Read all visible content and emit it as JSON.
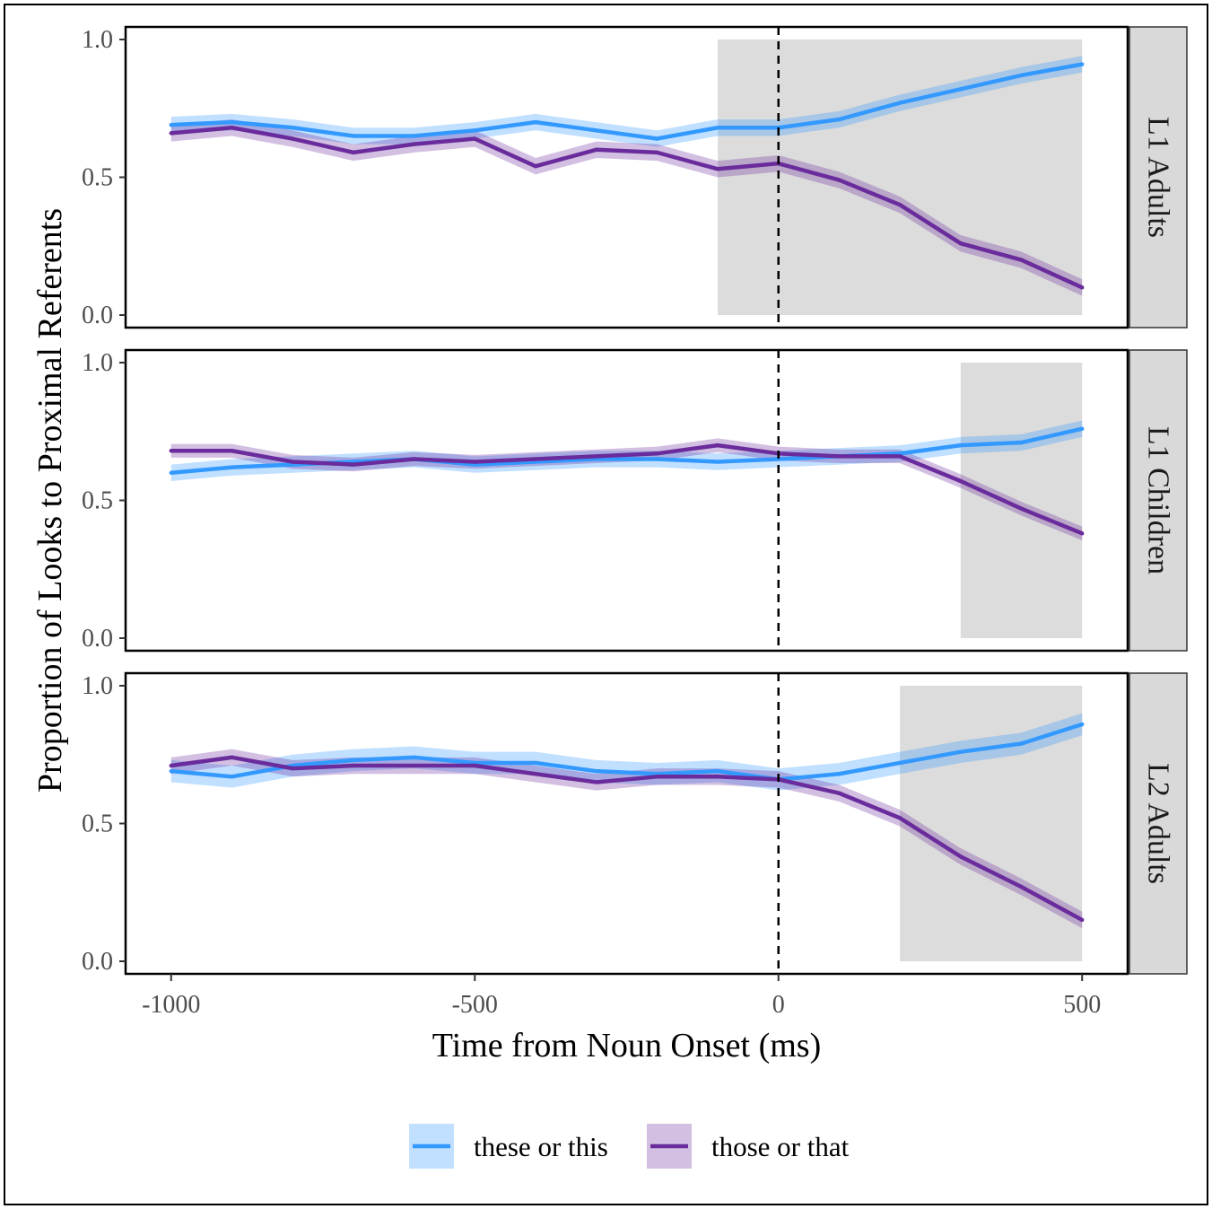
{
  "chart_data": {
    "type": "line",
    "ylabel": "Proportion of Looks to Proximal Referents",
    "xlabel": "Time from Noun Onset (ms)",
    "xlim": [
      -1075,
      575
    ],
    "ylim": [
      0,
      1
    ],
    "x_ticks": [
      -1000,
      -500,
      0,
      500
    ],
    "x_tick_labels": [
      "-1000",
      "-500",
      "0",
      "500"
    ],
    "y_ticks": [
      0,
      0.5,
      1
    ],
    "y_tick_labels": [
      "0.0",
      "0.5",
      "1.0"
    ],
    "reference_line_x": 0,
    "grid": false,
    "legend_position": "bottom",
    "colors": {
      "these": "#3399ff",
      "those": "#6a2c9c",
      "highlight": "#dcdcdc"
    },
    "legend": [
      {
        "key": "these",
        "label": "these or this"
      },
      {
        "key": "those",
        "label": "those or that"
      }
    ],
    "x": [
      -1000,
      -900,
      -800,
      -700,
      -600,
      -500,
      -400,
      -300,
      -200,
      -100,
      0,
      100,
      200,
      300,
      400,
      500
    ],
    "panels": [
      {
        "label": "L1 Adults",
        "highlight_start": -100,
        "highlight_end": 500,
        "series": [
          {
            "key": "these",
            "values": [
              0.69,
              0.7,
              0.68,
              0.65,
              0.65,
              0.67,
              0.7,
              0.67,
              0.64,
              0.68,
              0.68,
              0.71,
              0.77,
              0.82,
              0.87,
              0.91
            ],
            "ci": 0.03
          },
          {
            "key": "those",
            "values": [
              0.66,
              0.68,
              0.64,
              0.59,
              0.62,
              0.64,
              0.54,
              0.6,
              0.59,
              0.53,
              0.55,
              0.49,
              0.4,
              0.26,
              0.2,
              0.1
            ],
            "ci": 0.03
          }
        ]
      },
      {
        "label": "L1 Children",
        "highlight_start": 300,
        "highlight_end": 500,
        "series": [
          {
            "key": "these",
            "values": [
              0.6,
              0.62,
              0.63,
              0.64,
              0.65,
              0.63,
              0.64,
              0.65,
              0.65,
              0.64,
              0.65,
              0.66,
              0.67,
              0.7,
              0.71,
              0.76
            ],
            "ci": 0.03
          },
          {
            "key": "those",
            "values": [
              0.68,
              0.68,
              0.64,
              0.63,
              0.65,
              0.64,
              0.65,
              0.66,
              0.67,
              0.7,
              0.67,
              0.66,
              0.66,
              0.57,
              0.47,
              0.38
            ],
            "ci": 0.025
          }
        ]
      },
      {
        "label": "L2 Adults",
        "highlight_start": 200,
        "highlight_end": 500,
        "series": [
          {
            "key": "these",
            "values": [
              0.69,
              0.67,
              0.71,
              0.73,
              0.74,
              0.72,
              0.72,
              0.69,
              0.68,
              0.69,
              0.66,
              0.68,
              0.72,
              0.76,
              0.79,
              0.86
            ],
            "ci": 0.04
          },
          {
            "key": "those",
            "values": [
              0.71,
              0.74,
              0.7,
              0.71,
              0.71,
              0.71,
              0.68,
              0.65,
              0.67,
              0.67,
              0.66,
              0.61,
              0.52,
              0.38,
              0.27,
              0.15
            ],
            "ci": 0.03
          }
        ]
      }
    ]
  }
}
